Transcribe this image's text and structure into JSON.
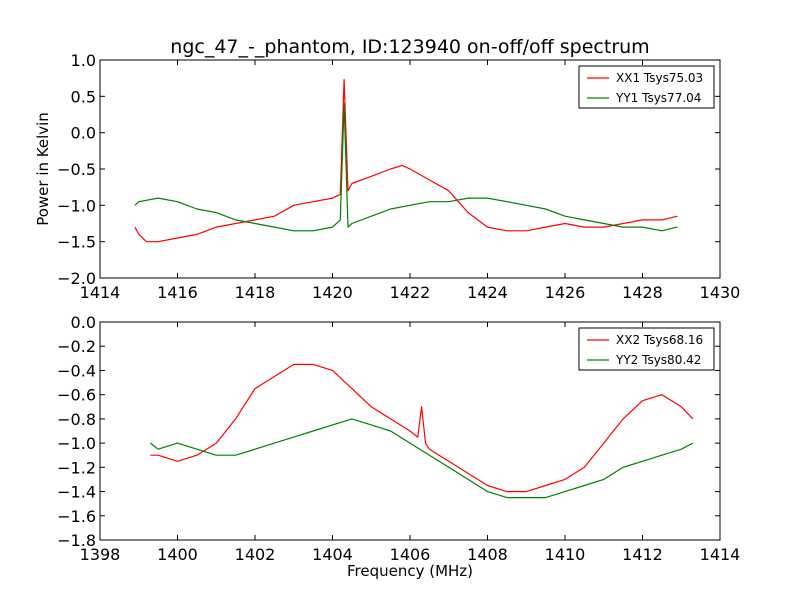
{
  "chart_data": [
    {
      "type": "line",
      "title": "ngc_47_-_phantom, ID:123940 on-off/off spectrum",
      "xlabel": "",
      "ylabel": "Power in Kelvin",
      "xlim": [
        1414,
        1430
      ],
      "ylim": [
        -2.0,
        1.0
      ],
      "xticks": [
        "1414",
        "1416",
        "1418",
        "1420",
        "1422",
        "1424",
        "1426",
        "1428",
        "1430"
      ],
      "yticks": [
        "1.0",
        "0.5",
        "0.0",
        "−0.5",
        "−1.0",
        "−1.5",
        "−2.0"
      ],
      "legend_position": "top-right",
      "series": [
        {
          "name": "XX1 Tsys75.03",
          "color": "#ff0000",
          "x": [
            1414.9,
            1415.0,
            1415.2,
            1415.5,
            1416.0,
            1416.5,
            1417.0,
            1417.5,
            1418.0,
            1418.5,
            1419.0,
            1419.5,
            1420.0,
            1420.2,
            1420.3,
            1420.4,
            1420.5,
            1421.0,
            1421.5,
            1421.8,
            1422.0,
            1422.5,
            1423.0,
            1423.5,
            1424.0,
            1424.5,
            1425.0,
            1425.5,
            1426.0,
            1426.5,
            1427.0,
            1427.5,
            1428.0,
            1428.5,
            1428.9
          ],
          "y": [
            -1.3,
            -1.4,
            -1.5,
            -1.5,
            -1.45,
            -1.4,
            -1.3,
            -1.25,
            -1.2,
            -1.15,
            -1.0,
            -0.95,
            -0.9,
            -0.85,
            0.73,
            -0.8,
            -0.7,
            -0.6,
            -0.5,
            -0.45,
            -0.5,
            -0.65,
            -0.8,
            -1.1,
            -1.3,
            -1.35,
            -1.35,
            -1.3,
            -1.25,
            -1.3,
            -1.3,
            -1.25,
            -1.2,
            -1.2,
            -1.15
          ]
        },
        {
          "name": "YY1 Tsys77.04",
          "color": "#008000",
          "x": [
            1414.9,
            1415.0,
            1415.5,
            1416.0,
            1416.5,
            1417.0,
            1417.5,
            1418.0,
            1418.5,
            1419.0,
            1419.5,
            1420.0,
            1420.2,
            1420.3,
            1420.4,
            1420.5,
            1421.0,
            1421.5,
            1422.0,
            1422.5,
            1423.0,
            1423.5,
            1424.0,
            1424.5,
            1425.0,
            1425.5,
            1426.0,
            1426.5,
            1427.0,
            1427.5,
            1428.0,
            1428.5,
            1428.9
          ],
          "y": [
            -1.0,
            -0.95,
            -0.9,
            -0.95,
            -1.05,
            -1.1,
            -1.2,
            -1.25,
            -1.3,
            -1.35,
            -1.35,
            -1.3,
            -1.2,
            0.4,
            -1.3,
            -1.25,
            -1.15,
            -1.05,
            -1.0,
            -0.95,
            -0.95,
            -0.9,
            -0.9,
            -0.95,
            -1.0,
            -1.05,
            -1.15,
            -1.2,
            -1.25,
            -1.3,
            -1.3,
            -1.35,
            -1.3
          ]
        }
      ]
    },
    {
      "type": "line",
      "title": "",
      "xlabel": "Frequency (MHz)",
      "ylabel": "",
      "xlim": [
        1398,
        1414
      ],
      "ylim": [
        -1.8,
        0.0
      ],
      "xticks": [
        "1398",
        "1400",
        "1402",
        "1404",
        "1406",
        "1408",
        "1410",
        "1412",
        "1414"
      ],
      "yticks": [
        "0.0",
        "−0.2",
        "−0.4",
        "−0.6",
        "−0.8",
        "−1.0",
        "−1.2",
        "−1.4",
        "−1.6",
        "−1.8"
      ],
      "legend_position": "top-right",
      "series": [
        {
          "name": "XX2 Tsys68.16",
          "color": "#ff0000",
          "x": [
            1399.3,
            1399.5,
            1400.0,
            1400.5,
            1401.0,
            1401.5,
            1402.0,
            1402.5,
            1403.0,
            1403.5,
            1404.0,
            1404.5,
            1405.0,
            1405.5,
            1406.0,
            1406.2,
            1406.3,
            1406.4,
            1406.5,
            1407.0,
            1407.5,
            1408.0,
            1408.5,
            1409.0,
            1409.5,
            1410.0,
            1410.5,
            1411.0,
            1411.5,
            1412.0,
            1412.5,
            1413.0,
            1413.3
          ],
          "y": [
            -1.1,
            -1.1,
            -1.15,
            -1.1,
            -1.0,
            -0.8,
            -0.55,
            -0.45,
            -0.35,
            -0.35,
            -0.4,
            -0.55,
            -0.7,
            -0.8,
            -0.9,
            -0.95,
            -0.7,
            -1.0,
            -1.05,
            -1.15,
            -1.25,
            -1.35,
            -1.4,
            -1.4,
            -1.35,
            -1.3,
            -1.2,
            -1.0,
            -0.8,
            -0.65,
            -0.6,
            -0.7,
            -0.8
          ]
        },
        {
          "name": "YY2 Tsys80.42",
          "color": "#008000",
          "x": [
            1399.3,
            1399.5,
            1400.0,
            1400.5,
            1401.0,
            1401.5,
            1402.0,
            1402.5,
            1403.0,
            1403.5,
            1404.0,
            1404.5,
            1405.0,
            1405.5,
            1406.0,
            1406.5,
            1407.0,
            1407.5,
            1408.0,
            1408.5,
            1409.0,
            1409.5,
            1410.0,
            1410.5,
            1411.0,
            1411.5,
            1412.0,
            1412.5,
            1413.0,
            1413.3
          ],
          "y": [
            -1.0,
            -1.05,
            -1.0,
            -1.05,
            -1.1,
            -1.1,
            -1.05,
            -1.0,
            -0.95,
            -0.9,
            -0.85,
            -0.8,
            -0.85,
            -0.9,
            -1.0,
            -1.1,
            -1.2,
            -1.3,
            -1.4,
            -1.45,
            -1.45,
            -1.45,
            -1.4,
            -1.35,
            -1.3,
            -1.2,
            -1.15,
            -1.1,
            -1.05,
            -1.0
          ]
        }
      ]
    }
  ]
}
